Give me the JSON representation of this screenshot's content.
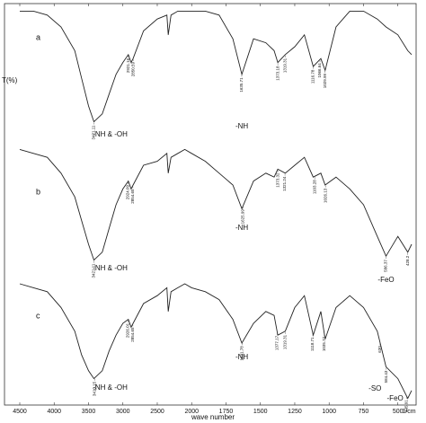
{
  "chart_data": {
    "type": "line",
    "ylabel": "T(%)",
    "xlabel": "wave number",
    "xunit": "1/cm",
    "xlim": [
      4500,
      400
    ],
    "xbreak": 2000,
    "xticks": [
      4500,
      4000,
      3500,
      3000,
      2500,
      2000,
      1750,
      1500,
      1250,
      1000,
      750,
      500
    ],
    "ylim": [
      0,
      100
    ],
    "x": [
      4500,
      4300,
      4100,
      3900,
      3700,
      3600,
      3500,
      3421,
      3300,
      3200,
      3100,
      3000,
      2921,
      2880,
      2852,
      2700,
      2500,
      2360,
      2340,
      2300,
      2200,
      2100,
      2000,
      1900,
      1800,
      1700,
      1635,
      1550,
      1460,
      1400,
      1373,
      1319,
      1250,
      1180,
      1116,
      1060,
      1029,
      950,
      850,
      750,
      650,
      586,
      500,
      428,
      400
    ],
    "series": [
      {
        "name": "a",
        "color": "#222222",
        "values": [
          99,
          99,
          98,
          95,
          89,
          82,
          75,
          71,
          73,
          78,
          83,
          86,
          88,
          86,
          87,
          94,
          97,
          98,
          93,
          98,
          99,
          99,
          99,
          99,
          98,
          92,
          83,
          92,
          91,
          89,
          86,
          88,
          90,
          93,
          85,
          87,
          84,
          95,
          99,
          99,
          97,
          95,
          93,
          89,
          88
        ],
        "peaks": [
          3421.11,
          2921.16,
          2850.59,
          1635.71,
          1373.18,
          1319.31,
          1116.78,
          1066.64,
          1029.99
        ],
        "groups": [
          "-NH & -OH",
          "-NH"
        ]
      },
      {
        "name": "b",
        "color": "#222222",
        "values": [
          64,
          63,
          62,
          58,
          52,
          46,
          40,
          36,
          38,
          44,
          50,
          54,
          56,
          54,
          55,
          60,
          61,
          63,
          58,
          62,
          63,
          64,
          63,
          61,
          58,
          55,
          49,
          56,
          58,
          57,
          59,
          58,
          60,
          62,
          57,
          58,
          55,
          57,
          54,
          50,
          42,
          37,
          42,
          38,
          40
        ],
        "peaks": [
          3421.11,
          2924.09,
          2854.65,
          1625.99,
          1373.32,
          1321.24,
          1103.28,
          1026.13,
          586.37,
          428.2
        ],
        "groups": [
          "-NH & -OH",
          "-NH",
          "-FeO"
        ]
      },
      {
        "name": "c",
        "color": "#222222",
        "values": [
          30,
          29,
          28,
          24,
          18,
          12,
          8,
          6,
          8,
          13,
          17,
          20,
          21,
          19,
          20,
          25,
          27,
          29,
          23,
          28,
          29,
          30,
          29,
          28,
          26,
          21,
          15,
          20,
          23,
          22,
          17,
          18,
          24,
          27,
          17,
          23,
          16,
          24,
          27,
          24,
          18,
          9,
          6,
          1,
          3
        ],
        "peaks": [
          3410.15,
          2926.01,
          2854.65,
          1631.78,
          1377.17,
          1319.31,
          1118.71,
          1035.77,
          630,
          584.43,
          435.91
        ],
        "groups": [
          "-NH & -OH",
          "-NH",
          "-SO",
          "-FeO"
        ]
      }
    ]
  }
}
